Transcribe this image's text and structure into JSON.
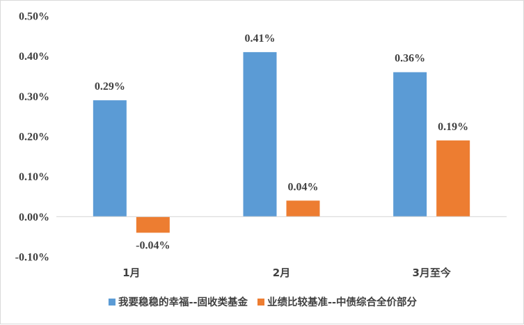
{
  "chart_data": {
    "type": "bar",
    "categories": [
      "1月",
      "2月",
      "3月至今"
    ],
    "series": [
      {
        "name": "我要稳稳的幸福--固收类基金",
        "values": [
          0.29,
          0.41,
          0.36
        ],
        "color": "#5b9bd5"
      },
      {
        "name": "业绩比较基准--中债综合全价部分",
        "values": [
          -0.04,
          0.04,
          0.19
        ],
        "color": "#ed7d31"
      }
    ],
    "data_labels": [
      [
        "0.29%",
        "0.41%",
        "0.36%"
      ],
      [
        "-0.04%",
        "0.04%",
        "0.19%"
      ]
    ],
    "y_ticks": [
      "-0.10%",
      "0.00%",
      "0.10%",
      "0.20%",
      "0.30%",
      "0.40%",
      "0.50%"
    ],
    "ylim": [
      -0.1,
      0.5
    ],
    "grid": false,
    "legend_position": "bottom",
    "axis_color": "#d9d9d9"
  }
}
